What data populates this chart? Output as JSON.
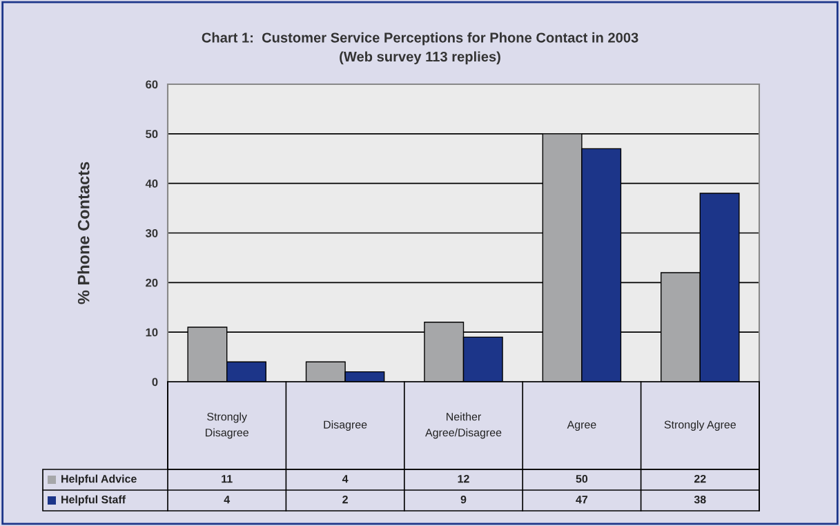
{
  "chart_data": {
    "type": "bar",
    "title": "Chart 1:  Customer Service Perceptions for Phone Contact in 2003\n(Web survey 113 replies)",
    "ylabel": "% Phone Contacts",
    "categories": [
      "Strongly\nDisagree",
      "Disagree",
      "Neither\nAgree/Disagree",
      "Agree",
      "Strongly Agree"
    ],
    "series": [
      {
        "name": "Helpful Advice",
        "color": "#a6a7a9",
        "values": [
          11,
          4,
          12,
          50,
          22
        ]
      },
      {
        "name": "Helpful Staff",
        "color": "#1c3589",
        "values": [
          4,
          2,
          9,
          47,
          38
        ]
      }
    ],
    "ylim": [
      0,
      60
    ],
    "yticks": [
      0,
      10,
      20,
      30,
      40,
      50,
      60
    ],
    "grid": "y",
    "legend": "bottom left",
    "data_labels": true
  }
}
